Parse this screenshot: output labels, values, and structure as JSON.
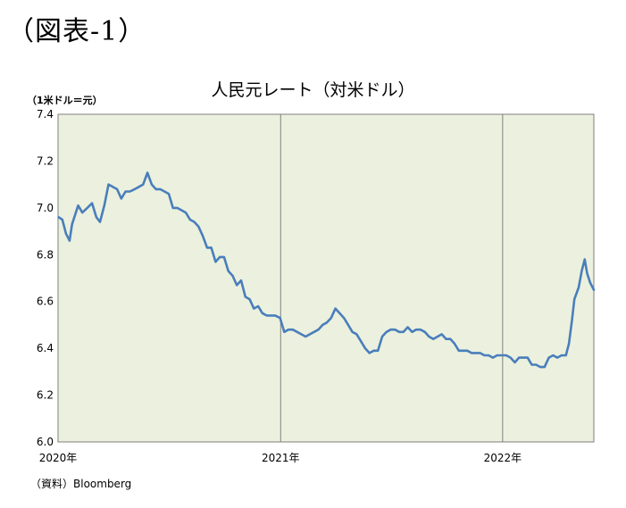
{
  "figure_label": "（図表-1）",
  "chart_data": {
    "type": "line",
    "title": "人民元レート（対米ドル）",
    "ylabel": "（1米ドル＝元）",
    "xlabel": "",
    "source": "（資料）Bloomberg",
    "ylim": [
      6.0,
      7.4
    ],
    "yticks": [
      6.0,
      6.2,
      6.4,
      6.6,
      6.8,
      7.0,
      7.2,
      7.4
    ],
    "ytick_labels": [
      "6.0",
      "6.2",
      "6.4",
      "6.6",
      "6.8",
      "7.0",
      "7.2",
      "7.4"
    ],
    "xlim": [
      "2020-01-01",
      "2022-05-31"
    ],
    "xticks": [
      "2020-01-01",
      "2021-01-01",
      "2022-01-01"
    ],
    "xtick_labels": [
      "2020年",
      "2021年",
      "2022年"
    ],
    "grid": "vertical lines at year boundaries",
    "series": [
      {
        "color": "#4a7ebb",
        "points": [
          [
            "2020-01-02",
            6.96
          ],
          [
            "2020-01-08",
            6.95
          ],
          [
            "2020-01-14",
            6.89
          ],
          [
            "2020-01-20",
            6.86
          ],
          [
            "2020-01-24",
            6.93
          ],
          [
            "2020-02-03",
            7.01
          ],
          [
            "2020-02-10",
            6.98
          ],
          [
            "2020-02-18",
            7.0
          ],
          [
            "2020-02-26",
            7.02
          ],
          [
            "2020-03-04",
            6.96
          ],
          [
            "2020-03-10",
            6.94
          ],
          [
            "2020-03-17",
            7.01
          ],
          [
            "2020-03-24",
            7.1
          ],
          [
            "2020-03-31",
            7.09
          ],
          [
            "2020-04-07",
            7.08
          ],
          [
            "2020-04-14",
            7.04
          ],
          [
            "2020-04-21",
            7.07
          ],
          [
            "2020-04-28",
            7.07
          ],
          [
            "2020-05-06",
            7.08
          ],
          [
            "2020-05-13",
            7.09
          ],
          [
            "2020-05-20",
            7.1
          ],
          [
            "2020-05-27",
            7.15
          ],
          [
            "2020-06-03",
            7.1
          ],
          [
            "2020-06-10",
            7.08
          ],
          [
            "2020-06-17",
            7.08
          ],
          [
            "2020-06-24",
            7.07
          ],
          [
            "2020-07-01",
            7.06
          ],
          [
            "2020-07-08",
            7.0
          ],
          [
            "2020-07-15",
            7.0
          ],
          [
            "2020-07-22",
            6.99
          ],
          [
            "2020-07-29",
            6.98
          ],
          [
            "2020-08-05",
            6.95
          ],
          [
            "2020-08-12",
            6.94
          ],
          [
            "2020-08-19",
            6.92
          ],
          [
            "2020-08-26",
            6.88
          ],
          [
            "2020-09-02",
            6.83
          ],
          [
            "2020-09-09",
            6.83
          ],
          [
            "2020-09-16",
            6.77
          ],
          [
            "2020-09-23",
            6.79
          ],
          [
            "2020-09-30",
            6.79
          ],
          [
            "2020-10-07",
            6.73
          ],
          [
            "2020-10-14",
            6.71
          ],
          [
            "2020-10-21",
            6.67
          ],
          [
            "2020-10-28",
            6.69
          ],
          [
            "2020-11-04",
            6.62
          ],
          [
            "2020-11-11",
            6.61
          ],
          [
            "2020-11-18",
            6.57
          ],
          [
            "2020-11-25",
            6.58
          ],
          [
            "2020-12-02",
            6.55
          ],
          [
            "2020-12-09",
            6.54
          ],
          [
            "2020-12-16",
            6.54
          ],
          [
            "2020-12-23",
            6.54
          ],
          [
            "2020-12-31",
            6.53
          ],
          [
            "2021-01-07",
            6.47
          ],
          [
            "2021-01-14",
            6.48
          ],
          [
            "2021-01-21",
            6.48
          ],
          [
            "2021-01-28",
            6.47
          ],
          [
            "2021-02-04",
            6.46
          ],
          [
            "2021-02-11",
            6.45
          ],
          [
            "2021-02-18",
            6.46
          ],
          [
            "2021-02-25",
            6.47
          ],
          [
            "2021-03-04",
            6.48
          ],
          [
            "2021-03-11",
            6.5
          ],
          [
            "2021-03-18",
            6.51
          ],
          [
            "2021-03-25",
            6.53
          ],
          [
            "2021-04-01",
            6.57
          ],
          [
            "2021-04-08",
            6.55
          ],
          [
            "2021-04-15",
            6.53
          ],
          [
            "2021-04-22",
            6.5
          ],
          [
            "2021-04-29",
            6.47
          ],
          [
            "2021-05-06",
            6.46
          ],
          [
            "2021-05-13",
            6.43
          ],
          [
            "2021-05-20",
            6.4
          ],
          [
            "2021-05-27",
            6.38
          ],
          [
            "2021-06-03",
            6.39
          ],
          [
            "2021-06-10",
            6.39
          ],
          [
            "2021-06-17",
            6.45
          ],
          [
            "2021-06-24",
            6.47
          ],
          [
            "2021-07-01",
            6.48
          ],
          [
            "2021-07-08",
            6.48
          ],
          [
            "2021-07-15",
            6.47
          ],
          [
            "2021-07-22",
            6.47
          ],
          [
            "2021-07-29",
            6.49
          ],
          [
            "2021-08-05",
            6.47
          ],
          [
            "2021-08-12",
            6.48
          ],
          [
            "2021-08-19",
            6.48
          ],
          [
            "2021-08-26",
            6.47
          ],
          [
            "2021-09-02",
            6.45
          ],
          [
            "2021-09-09",
            6.44
          ],
          [
            "2021-09-16",
            6.45
          ],
          [
            "2021-09-23",
            6.46
          ],
          [
            "2021-09-30",
            6.44
          ],
          [
            "2021-10-07",
            6.44
          ],
          [
            "2021-10-14",
            6.42
          ],
          [
            "2021-10-21",
            6.39
          ],
          [
            "2021-10-28",
            6.39
          ],
          [
            "2021-11-04",
            6.39
          ],
          [
            "2021-11-11",
            6.38
          ],
          [
            "2021-11-18",
            6.38
          ],
          [
            "2021-11-25",
            6.38
          ],
          [
            "2021-12-02",
            6.37
          ],
          [
            "2021-12-09",
            6.37
          ],
          [
            "2021-12-16",
            6.36
          ],
          [
            "2021-12-23",
            6.37
          ],
          [
            "2021-12-31",
            6.37
          ],
          [
            "2022-01-07",
            6.37
          ],
          [
            "2022-01-14",
            6.36
          ],
          [
            "2022-01-21",
            6.34
          ],
          [
            "2022-01-28",
            6.36
          ],
          [
            "2022-02-04",
            6.36
          ],
          [
            "2022-02-11",
            6.36
          ],
          [
            "2022-02-18",
            6.33
          ],
          [
            "2022-02-25",
            6.33
          ],
          [
            "2022-03-04",
            6.32
          ],
          [
            "2022-03-11",
            6.32
          ],
          [
            "2022-03-18",
            6.36
          ],
          [
            "2022-03-25",
            6.37
          ],
          [
            "2022-04-01",
            6.36
          ],
          [
            "2022-04-08",
            6.37
          ],
          [
            "2022-04-15",
            6.37
          ],
          [
            "2022-04-20",
            6.42
          ],
          [
            "2022-04-25",
            6.52
          ],
          [
            "2022-04-29",
            6.61
          ],
          [
            "2022-05-06",
            6.66
          ],
          [
            "2022-05-11",
            6.73
          ],
          [
            "2022-05-16",
            6.78
          ],
          [
            "2022-05-20",
            6.72
          ],
          [
            "2022-05-25",
            6.68
          ],
          [
            "2022-05-31",
            6.65
          ]
        ]
      }
    ]
  }
}
